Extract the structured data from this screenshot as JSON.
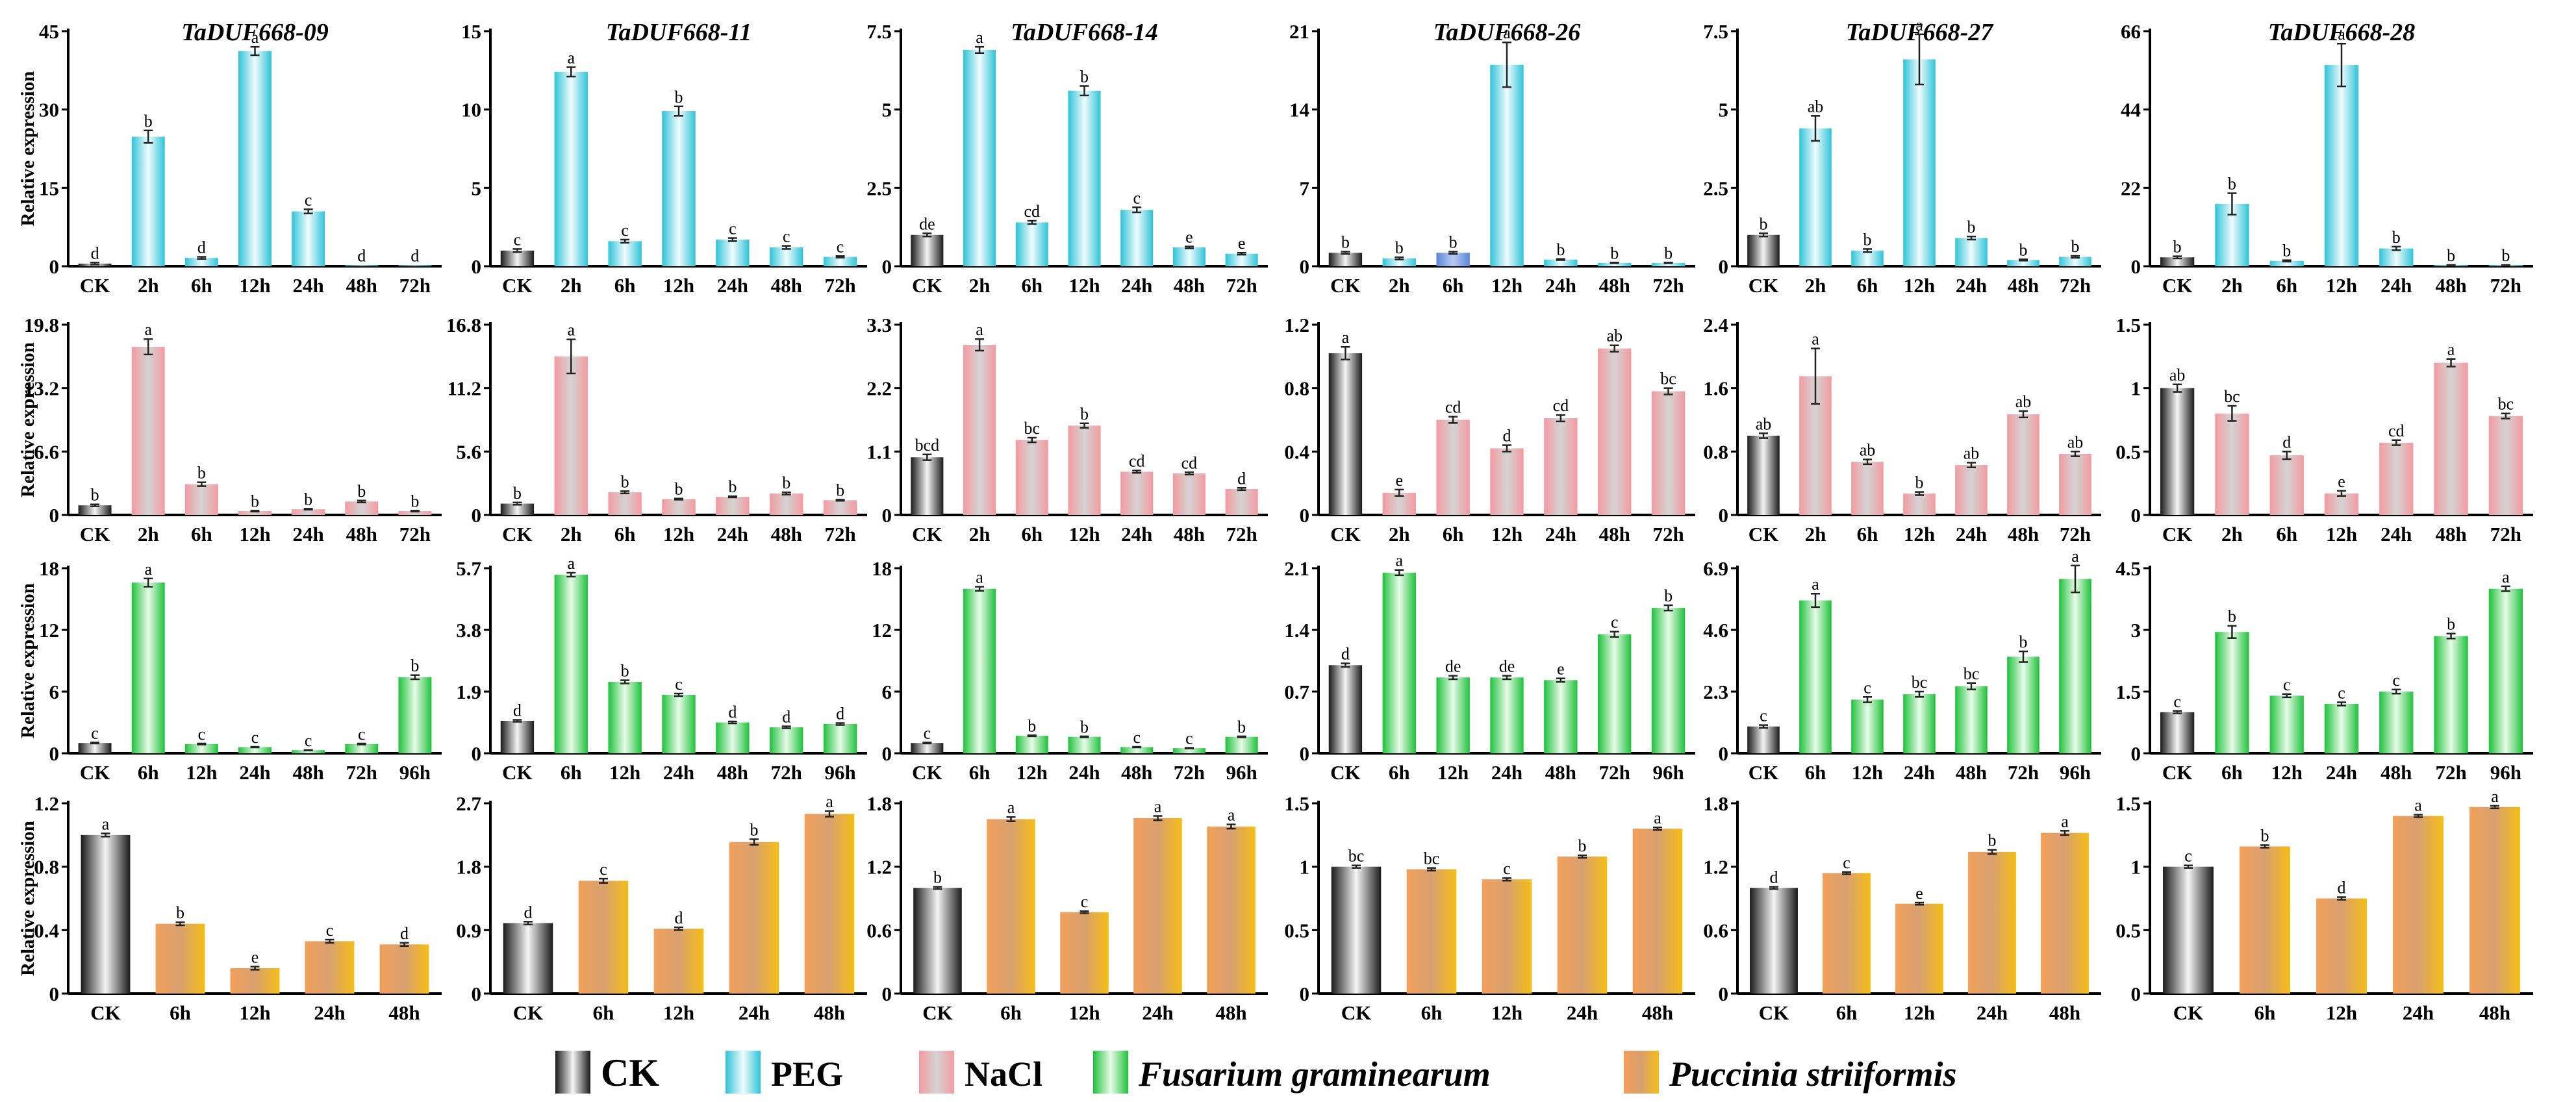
{
  "legend": [
    {
      "label": "CK",
      "gradient": "ck"
    },
    {
      "label": "PEG",
      "gradient": "peg"
    },
    {
      "label": "NaCl",
      "gradient": "nacl"
    },
    {
      "label": "Fusarium graminearum",
      "gradient": "fus",
      "italic": true
    },
    {
      "label": "Puccinia striiformis",
      "gradient": "puc",
      "italic": true
    }
  ],
  "colors": {
    "ck": [
      "#1a1a1a",
      "#f5f5f5",
      "#1a1a1a"
    ],
    "peg": [
      "#2ec4d8",
      "#f0fbfd",
      "#2ec4d8"
    ],
    "nacl": [
      "#f49aa0",
      "#d4d4d4",
      "#f49aa0"
    ],
    "fus": [
      "#1fc23c",
      "#e8fbe8",
      "#1fc23c"
    ],
    "puc": [
      "#f2a05a",
      "#d8a070",
      "#f5be16"
    ],
    "blue": [
      "#5a86d8",
      "#b8ccf2",
      "#5a86d8"
    ]
  },
  "ylabel": "Relative expression",
  "genes": [
    "TaDUF668-09",
    "TaDUF668-11",
    "TaDUF668-14",
    "TaDUF668-26",
    "TaDUF668-27",
    "TaDUF668-28"
  ],
  "chart_data": [
    {
      "type": "bar",
      "row": 0,
      "categories": [
        "CK",
        "2h",
        "6h",
        "12h",
        "24h",
        "48h",
        "72h"
      ],
      "treatment": "peg",
      "panels": [
        {
          "gene": "TaDUF668-09",
          "ylim": [
            0,
            45
          ],
          "ticks": [
            "0",
            "15",
            "30",
            "45"
          ],
          "values": [
            0.5,
            24.8,
            1.6,
            41.2,
            10.5,
            0.1,
            0.1
          ],
          "errors": [
            0.2,
            1.2,
            0.2,
            0.8,
            0.4,
            0,
            0
          ],
          "letters": [
            "d",
            "b",
            "d",
            "a",
            "c",
            "d",
            "d"
          ]
        },
        {
          "gene": "TaDUF668-11",
          "ylim": [
            0,
            15
          ],
          "ticks": [
            "0",
            "5",
            "10",
            "15"
          ],
          "values": [
            1.0,
            12.4,
            1.6,
            9.9,
            1.7,
            1.2,
            0.6
          ],
          "errors": [
            0.1,
            0.3,
            0.1,
            0.3,
            0.1,
            0.1,
            0.05
          ],
          "letters": [
            "c",
            "a",
            "c",
            "b",
            "c",
            "c",
            "c"
          ]
        },
        {
          "gene": "TaDUF668-14",
          "ylim": [
            0,
            7.5
          ],
          "ticks": [
            "0",
            "2.5",
            "5",
            "7.5"
          ],
          "values": [
            1.0,
            6.9,
            1.4,
            5.6,
            1.8,
            0.6,
            0.4
          ],
          "errors": [
            0.05,
            0.1,
            0.05,
            0.15,
            0.08,
            0.03,
            0.03
          ],
          "letters": [
            "de",
            "a",
            "cd",
            "b",
            "c",
            "e",
            "e"
          ]
        },
        {
          "gene": "TaDUF668-26",
          "ylim": [
            0,
            21
          ],
          "ticks": [
            "0",
            "7",
            "14",
            "21"
          ],
          "values": [
            1.2,
            0.7,
            1.2,
            18.0,
            0.6,
            0.3,
            0.3
          ],
          "errors": [
            0.1,
            0.1,
            0.1,
            2.0,
            0.05,
            0.03,
            0.03
          ],
          "letters": [
            "b",
            "b",
            "b",
            "a",
            "b",
            "b",
            "b"
          ],
          "colors": [
            "ck",
            "peg",
            "blue",
            "peg",
            "peg",
            "peg",
            "peg"
          ]
        },
        {
          "gene": "TaDUF668-27",
          "ylim": [
            0,
            7.5
          ],
          "ticks": [
            "0",
            "2.5",
            "5",
            "7.5"
          ],
          "values": [
            1.0,
            4.4,
            0.5,
            6.6,
            0.9,
            0.2,
            0.3
          ],
          "errors": [
            0.05,
            0.4,
            0.05,
            0.8,
            0.05,
            0.02,
            0.03
          ],
          "letters": [
            "b",
            "ab",
            "b",
            "a",
            "b",
            "b",
            "b"
          ]
        },
        {
          "gene": "TaDUF668-28",
          "ylim": [
            0,
            66
          ],
          "ticks": [
            "0",
            "22",
            "44",
            "66"
          ],
          "values": [
            2.5,
            17.5,
            1.5,
            56.5,
            5.0,
            0.3,
            0.3
          ],
          "errors": [
            0.3,
            3.0,
            0.2,
            6.0,
            0.5,
            0.05,
            0.05
          ],
          "letters": [
            "b",
            "b",
            "b",
            "a",
            "b",
            "b",
            "b"
          ]
        }
      ]
    },
    {
      "type": "bar",
      "row": 1,
      "categories": [
        "CK",
        "2h",
        "6h",
        "12h",
        "24h",
        "48h",
        "72h"
      ],
      "treatment": "nacl",
      "panels": [
        {
          "gene": "TaDUF668-09",
          "ylim": [
            0,
            19.8
          ],
          "ticks": [
            "0",
            "6.6",
            "13.2",
            "19.8"
          ],
          "values": [
            1.0,
            17.5,
            3.2,
            0.4,
            0.6,
            1.4,
            0.4
          ],
          "errors": [
            0.1,
            0.8,
            0.2,
            0.05,
            0.05,
            0.1,
            0.05
          ],
          "letters": [
            "b",
            "a",
            "b",
            "b",
            "b",
            "b",
            "b"
          ]
        },
        {
          "gene": "TaDUF668-11",
          "ylim": [
            0,
            16.8
          ],
          "ticks": [
            "0",
            "5.6",
            "11.2",
            "16.8"
          ],
          "values": [
            1.0,
            14.0,
            2.0,
            1.4,
            1.6,
            1.9,
            1.3
          ],
          "errors": [
            0.1,
            1.5,
            0.1,
            0.05,
            0.05,
            0.1,
            0.05
          ],
          "letters": [
            "b",
            "a",
            "b",
            "b",
            "b",
            "b",
            "b"
          ]
        },
        {
          "gene": "TaDUF668-14",
          "ylim": [
            0,
            3.3
          ],
          "ticks": [
            "0",
            "1.1",
            "2.2",
            "3.3"
          ],
          "values": [
            1.0,
            2.95,
            1.3,
            1.55,
            0.75,
            0.72,
            0.45
          ],
          "errors": [
            0.05,
            0.1,
            0.04,
            0.04,
            0.02,
            0.02,
            0.02
          ],
          "letters": [
            "bcd",
            "a",
            "bc",
            "b",
            "cd",
            "cd",
            "d"
          ]
        },
        {
          "gene": "TaDUF668-26",
          "ylim": [
            0,
            1.2
          ],
          "ticks": [
            "0",
            "0.4",
            "0.8",
            "1.2"
          ],
          "values": [
            1.02,
            0.14,
            0.6,
            0.42,
            0.61,
            1.05,
            0.78
          ],
          "errors": [
            0.04,
            0.02,
            0.02,
            0.02,
            0.02,
            0.02,
            0.02
          ],
          "letters": [
            "a",
            "e",
            "cd",
            "d",
            "cd",
            "ab",
            "bc"
          ]
        },
        {
          "gene": "TaDUF668-27",
          "ylim": [
            0,
            2.4
          ],
          "ticks": [
            "0",
            "0.8",
            "1.6",
            "2.4"
          ],
          "values": [
            1.0,
            1.75,
            0.67,
            0.27,
            0.63,
            1.27,
            0.77
          ],
          "errors": [
            0.03,
            0.35,
            0.03,
            0.02,
            0.03,
            0.04,
            0.03
          ],
          "letters": [
            "ab",
            "a",
            "ab",
            "b",
            "ab",
            "ab",
            "ab"
          ]
        },
        {
          "gene": "TaDUF668-28",
          "ylim": [
            0,
            1.5
          ],
          "ticks": [
            "0",
            "0.5",
            "1",
            "1.5"
          ],
          "values": [
            1.0,
            0.8,
            0.47,
            0.17,
            0.57,
            1.2,
            0.78
          ],
          "errors": [
            0.03,
            0.06,
            0.03,
            0.02,
            0.02,
            0.03,
            0.02
          ],
          "letters": [
            "ab",
            "bc",
            "d",
            "e",
            "cd",
            "a",
            "bc"
          ]
        }
      ]
    },
    {
      "type": "bar",
      "row": 2,
      "categories": [
        "CK",
        "6h",
        "12h",
        "24h",
        "48h",
        "72h",
        "96h"
      ],
      "treatment": "fus",
      "panels": [
        {
          "gene": "TaDUF668-09",
          "ylim": [
            0,
            18
          ],
          "ticks": [
            "0",
            "6",
            "12",
            "18"
          ],
          "values": [
            1.0,
            16.6,
            0.9,
            0.6,
            0.3,
            0.9,
            7.4
          ],
          "errors": [
            0.05,
            0.4,
            0.05,
            0.03,
            0.02,
            0.05,
            0.2
          ],
          "letters": [
            "c",
            "a",
            "c",
            "c",
            "c",
            "c",
            "b"
          ]
        },
        {
          "gene": "TaDUF668-11",
          "ylim": [
            0,
            5.7
          ],
          "ticks": [
            "0",
            "1.9",
            "3.8",
            "5.7"
          ],
          "values": [
            1.0,
            5.5,
            2.2,
            1.8,
            0.95,
            0.8,
            0.9
          ],
          "errors": [
            0.03,
            0.06,
            0.05,
            0.04,
            0.03,
            0.03,
            0.03
          ],
          "letters": [
            "d",
            "a",
            "b",
            "c",
            "d",
            "d",
            "d"
          ]
        },
        {
          "gene": "TaDUF668-14",
          "ylim": [
            0,
            18
          ],
          "ticks": [
            "0",
            "6",
            "12",
            "18"
          ],
          "values": [
            1.0,
            16.0,
            1.7,
            1.6,
            0.6,
            0.5,
            1.6
          ],
          "errors": [
            0.05,
            0.2,
            0.05,
            0.05,
            0.03,
            0.03,
            0.05
          ],
          "letters": [
            "c",
            "a",
            "b",
            "b",
            "c",
            "c",
            "b"
          ]
        },
        {
          "gene": "TaDUF668-26",
          "ylim": [
            0,
            2.1
          ],
          "ticks": [
            "0",
            "0.7",
            "1.4",
            "2.1"
          ],
          "values": [
            1.0,
            2.05,
            0.86,
            0.86,
            0.83,
            1.35,
            1.65
          ],
          "errors": [
            0.02,
            0.03,
            0.02,
            0.02,
            0.02,
            0.03,
            0.03
          ],
          "letters": [
            "d",
            "a",
            "de",
            "de",
            "e",
            "c",
            "b"
          ]
        },
        {
          "gene": "TaDUF668-27",
          "ylim": [
            0,
            6.9
          ],
          "ticks": [
            "0",
            "2.3",
            "4.6",
            "6.9"
          ],
          "values": [
            1.0,
            5.7,
            2.0,
            2.2,
            2.5,
            3.6,
            6.5
          ],
          "errors": [
            0.05,
            0.25,
            0.1,
            0.1,
            0.12,
            0.2,
            0.5
          ],
          "letters": [
            "c",
            "a",
            "c",
            "bc",
            "bc",
            "b",
            "a"
          ]
        },
        {
          "gene": "TaDUF668-28",
          "ylim": [
            0,
            4.5
          ],
          "ticks": [
            "0",
            "1.5",
            "3",
            "4.5"
          ],
          "values": [
            1.0,
            2.95,
            1.4,
            1.2,
            1.5,
            2.85,
            4.0
          ],
          "errors": [
            0.03,
            0.15,
            0.04,
            0.04,
            0.05,
            0.06,
            0.06
          ],
          "letters": [
            "c",
            "b",
            "c",
            "c",
            "c",
            "b",
            "a"
          ]
        }
      ]
    },
    {
      "type": "bar",
      "row": 3,
      "categories": [
        "CK",
        "6h",
        "12h",
        "24h",
        "48h"
      ],
      "treatment": "puc",
      "panels": [
        {
          "gene": "TaDUF668-09",
          "ylim": [
            0,
            1.2
          ],
          "ticks": [
            "0",
            "0.4",
            "0.8",
            "1.2"
          ],
          "values": [
            1.0,
            0.44,
            0.16,
            0.33,
            0.31
          ],
          "errors": [
            0.01,
            0.01,
            0.01,
            0.01,
            0.01
          ],
          "letters": [
            "a",
            "b",
            "e",
            "c",
            "d"
          ]
        },
        {
          "gene": "TaDUF668-11",
          "ylim": [
            0,
            2.7
          ],
          "ticks": [
            "0",
            "0.9",
            "1.8",
            "2.7"
          ],
          "values": [
            1.0,
            1.6,
            0.92,
            2.15,
            2.55
          ],
          "errors": [
            0.02,
            0.03,
            0.02,
            0.04,
            0.04
          ],
          "letters": [
            "d",
            "c",
            "d",
            "b",
            "a"
          ]
        },
        {
          "gene": "TaDUF668-14",
          "ylim": [
            0,
            1.8
          ],
          "ticks": [
            "0",
            "0.6",
            "1.2",
            "1.8"
          ],
          "values": [
            1.0,
            1.65,
            0.77,
            1.66,
            1.58
          ],
          "errors": [
            0.01,
            0.02,
            0.01,
            0.02,
            0.02
          ],
          "letters": [
            "b",
            "a",
            "c",
            "a",
            "a"
          ]
        },
        {
          "gene": "TaDUF668-26",
          "ylim": [
            0,
            1.5
          ],
          "ticks": [
            "0",
            "0.5",
            "1",
            "1.5"
          ],
          "values": [
            1.0,
            0.98,
            0.9,
            1.08,
            1.3
          ],
          "errors": [
            0.01,
            0.01,
            0.01,
            0.01,
            0.01
          ],
          "letters": [
            "bc",
            "bc",
            "c",
            "b",
            "a"
          ]
        },
        {
          "gene": "TaDUF668-27",
          "ylim": [
            0,
            1.8
          ],
          "ticks": [
            "0",
            "0.6",
            "1.2",
            "1.8"
          ],
          "values": [
            1.0,
            1.14,
            0.85,
            1.34,
            1.52
          ],
          "errors": [
            0.01,
            0.01,
            0.01,
            0.02,
            0.02
          ],
          "letters": [
            "d",
            "c",
            "e",
            "b",
            "a"
          ]
        },
        {
          "gene": "TaDUF668-28",
          "ylim": [
            0,
            1.5
          ],
          "ticks": [
            "0",
            "0.5",
            "1",
            "1.5"
          ],
          "values": [
            1.0,
            1.16,
            0.75,
            1.4,
            1.47
          ],
          "errors": [
            0.01,
            0.01,
            0.01,
            0.01,
            0.01
          ],
          "letters": [
            "c",
            "b",
            "d",
            "a",
            "a"
          ]
        }
      ]
    }
  ]
}
